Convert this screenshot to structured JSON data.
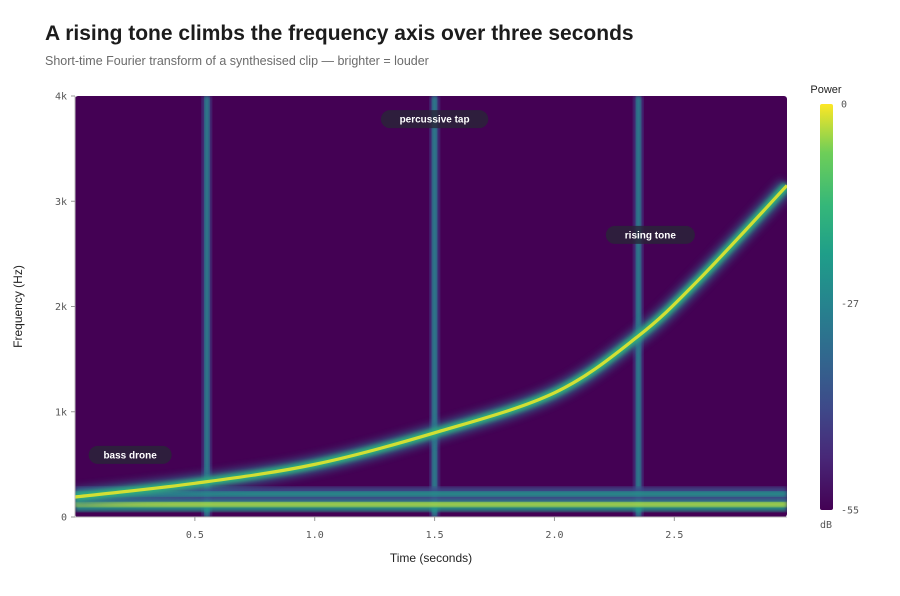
{
  "header": {
    "title": "A rising tone climbs the frequency axis over three seconds",
    "subtitle": "Short-time Fourier transform of a synthesised clip — brighter = louder"
  },
  "chart_data": {
    "type": "heatmap",
    "xlabel": "Time (seconds)",
    "ylabel": "Frequency (Hz)",
    "xlim": [
      0,
      2.97
    ],
    "ylim": [
      0,
      4000
    ],
    "x_ticks": [
      {
        "value": 0.5,
        "label": "0.5"
      },
      {
        "value": 1.0,
        "label": "1.0"
      },
      {
        "value": 1.5,
        "label": "1.5"
      },
      {
        "value": 2.0,
        "label": "2.0"
      },
      {
        "value": 2.5,
        "label": "2.5"
      }
    ],
    "y_ticks": [
      {
        "value": 0,
        "label": "0"
      },
      {
        "value": 1000,
        "label": "1k"
      },
      {
        "value": 2000,
        "label": "2k"
      },
      {
        "value": 3000,
        "label": "3k"
      },
      {
        "value": 4000,
        "label": "4k"
      }
    ],
    "colorscale": "viridis",
    "colors": {
      "low": "#440154",
      "mid": "#21918c",
      "high": "#fde725",
      "background": "#440154"
    },
    "colorbar": {
      "title": "Power",
      "unit": "dB",
      "range": [
        -55,
        0
      ],
      "ticks": [
        {
          "value": 0,
          "label": "0"
        },
        {
          "value": -27,
          "label": "-27"
        },
        {
          "value": -55,
          "label": "-55"
        }
      ]
    },
    "components": {
      "bass_drone": {
        "frequencies_hz": [
          120,
          220
        ],
        "power_db": [
          -3,
          -22
        ]
      },
      "rising_tone": {
        "points": [
          {
            "t": 0.0,
            "f": 190
          },
          {
            "t": 0.5,
            "f": 320
          },
          {
            "t": 1.0,
            "f": 500
          },
          {
            "t": 1.5,
            "f": 800
          },
          {
            "t": 2.0,
            "f": 1180
          },
          {
            "t": 2.35,
            "f": 1720
          },
          {
            "t": 2.6,
            "f": 2250
          },
          {
            "t": 2.97,
            "f": 3150
          }
        ],
        "power_db": -2
      },
      "percussive_taps": {
        "times_s": [
          0.55,
          1.5,
          2.35
        ],
        "power_db": -30
      }
    },
    "annotations": [
      {
        "text": "bass drone",
        "t": 0.23,
        "f": 590
      },
      {
        "text": "percussive tap",
        "t": 1.5,
        "f": 3780
      },
      {
        "text": "rising tone",
        "t": 2.4,
        "f": 2680
      }
    ]
  }
}
